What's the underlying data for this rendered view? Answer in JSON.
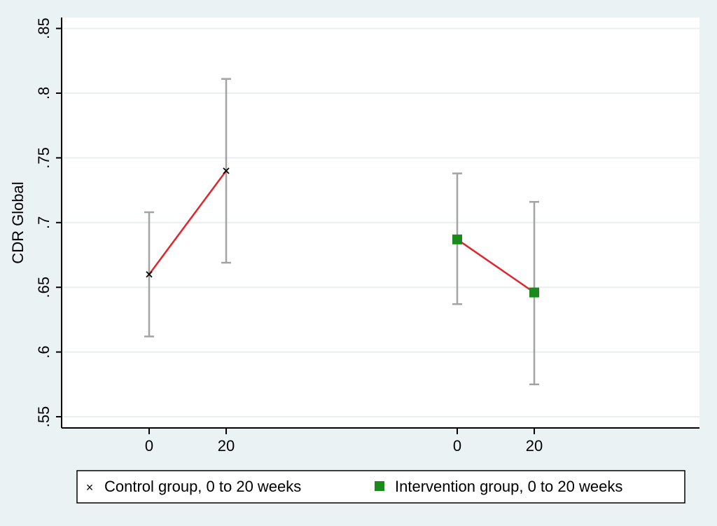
{
  "chart_data": {
    "type": "scatter",
    "title": "",
    "ylabel": "CDR Global",
    "xlabel": "",
    "ylim": [
      0.55,
      0.85
    ],
    "yticks": [
      0.55,
      0.6,
      0.65,
      0.7,
      0.75,
      0.8,
      0.85
    ],
    "ytick_labels": [
      ".55",
      ".6",
      ".65",
      ".7",
      ".75",
      ".8",
      ".85"
    ],
    "grid": true,
    "legend_position": "bottom",
    "series": [
      {
        "name": "Control group, 0 to 20 weeks",
        "marker": "x",
        "marker_color": "#000000",
        "line_color": "#e0262d",
        "points": [
          {
            "x_label": "0",
            "y": 0.66,
            "ci_low": 0.612,
            "ci_high": 0.708
          },
          {
            "x_label": "20",
            "y": 0.74,
            "ci_low": 0.669,
            "ci_high": 0.811
          }
        ]
      },
      {
        "name": "Intervention group, 0 to 20 weeks",
        "marker": "square",
        "marker_color": "#1a8a1a",
        "line_color": "#e0262d",
        "points": [
          {
            "x_label": "0",
            "y": 0.687,
            "ci_low": 0.637,
            "ci_high": 0.738
          },
          {
            "x_label": "20",
            "y": 0.646,
            "ci_low": 0.575,
            "ci_high": 0.716
          }
        ]
      }
    ],
    "errorbar_color": "#a3a3a3",
    "grid_color": "#e7efef"
  }
}
